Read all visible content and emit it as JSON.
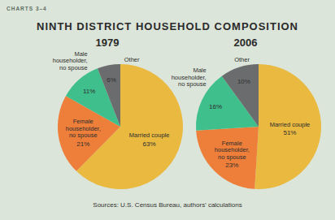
{
  "header": {
    "label": "CHARTS 3–4",
    "title": "NINTH DISTRICT HOUSEHOLD COMPOSITION",
    "source": "Sources: U.S. Census Bureau, authors' calculations"
  },
  "chart_data": [
    {
      "type": "pie",
      "title": "1979",
      "categories": [
        "Married couple",
        "Female householder, no spouse",
        "Male householder, no spouse",
        "Other"
      ],
      "values": [
        63,
        21,
        11,
        6
      ],
      "value_labels": [
        "63%",
        "21%",
        "11%",
        "6%"
      ],
      "colors": [
        "#e9b940",
        "#ed7f3b",
        "#3fbf8c",
        "#6b6c6e"
      ],
      "data_labels": true
    },
    {
      "type": "pie",
      "title": "2006",
      "categories": [
        "Married couple",
        "Female householder, no spouse",
        "Male householder, no spouse",
        "Other"
      ],
      "values": [
        51,
        23,
        16,
        10
      ],
      "value_labels": [
        "51%",
        "23%",
        "16%",
        "10%"
      ],
      "colors": [
        "#e9b940",
        "#ed7f3b",
        "#3fbf8c",
        "#6b6c6e"
      ],
      "data_labels": true
    }
  ]
}
